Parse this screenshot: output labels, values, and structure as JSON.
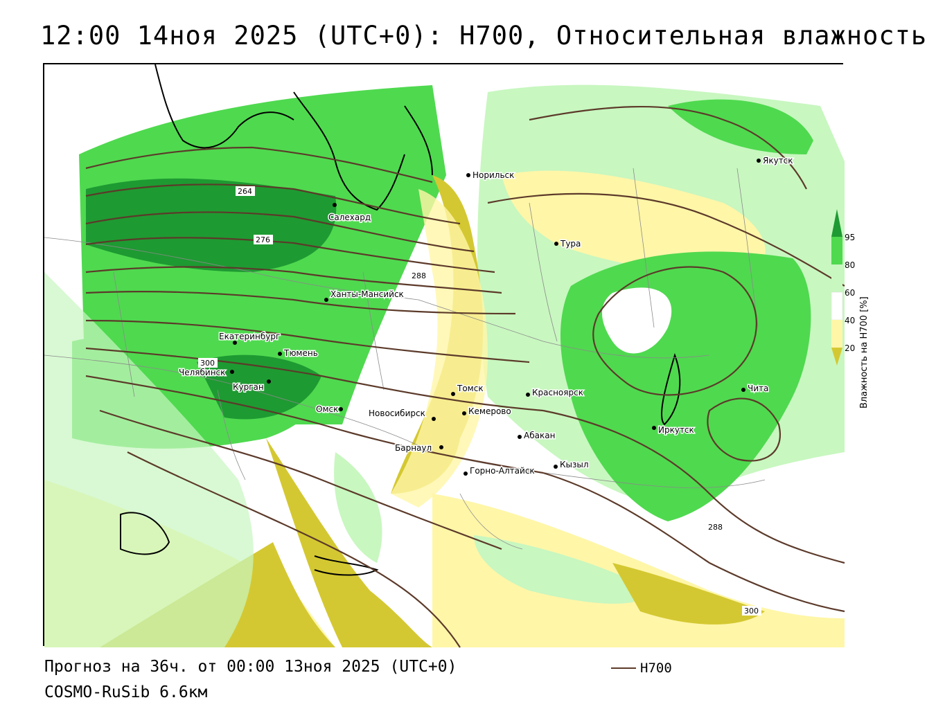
{
  "title": "12:00 14ноя 2025 (UTC+0): H700, Относительная влажность",
  "footer": {
    "forecast": "Прогноз на 36ч. от 00:00 13ноя 2025 (UTC+0)",
    "model": "COSMO-RuSib 6.6км",
    "contour_legend_label": "H700"
  },
  "legend": {
    "axis_label": "Влажность на H700 [%]",
    "ticks": [
      "95",
      "80",
      "60",
      "40",
      "20"
    ],
    "colors": {
      "very_dry": "#d4c832",
      "dry": "#fff6a8",
      "neutral": "#ffffff",
      "moist": "#c8f7c0",
      "wet": "#4fd94f",
      "very_wet": "#1e9a32"
    }
  },
  "contour_labels": [
    "264",
    "276",
    "288",
    "300",
    "288",
    "300"
  ],
  "contour_color": "#5c3a2a",
  "cities": [
    "Норильск",
    "Якутск",
    "Салехард",
    "Тура",
    "Ханты-Мансийск",
    "Екатеринбург",
    "Тюмень",
    "Челябинск",
    "Курган",
    "Омск",
    "Новосибирск",
    "Томск",
    "Кемерово",
    "Красноярск",
    "Барнаул",
    "Абакан",
    "Горно-Алтайск",
    "Кызыл",
    "Иркутск",
    "Чита"
  ]
}
